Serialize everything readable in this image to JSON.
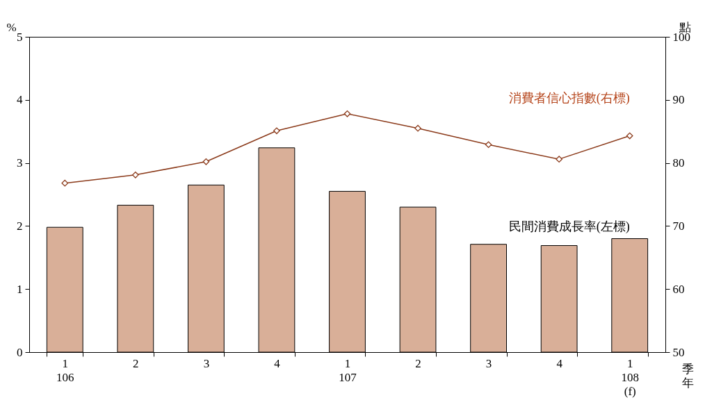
{
  "chart_data": {
    "type": "bar",
    "categories": [
      "1\n106",
      "2",
      "3",
      "4",
      "1\n107",
      "2",
      "3",
      "4",
      "1\n108\n(f)"
    ],
    "xlabel": "季年",
    "ylabel": "%",
    "y2label": "點",
    "series": [
      {
        "name": "民間消費成長率(左標)",
        "color": "#d9af98",
        "values": [
          1.98,
          2.33,
          2.65,
          3.24,
          2.55,
          2.3,
          1.71,
          1.69,
          1.8
        ]
      },
      {
        "name": "消費者信心指數(右標)",
        "type": "line",
        "axis": "y2",
        "color": "#8b3a1a",
        "marker": "diamond",
        "values": [
          76.8,
          78.1,
          80.2,
          85.1,
          87.8,
          85.5,
          82.9,
          80.6,
          84.3
        ]
      }
    ],
    "ylim": [
      0,
      5
    ],
    "yticks": [
      0,
      1,
      2,
      3,
      4,
      5
    ],
    "y2lim": [
      50,
      100
    ],
    "y2ticks": [
      50,
      60,
      70,
      80,
      90,
      100
    ],
    "grid": false
  }
}
